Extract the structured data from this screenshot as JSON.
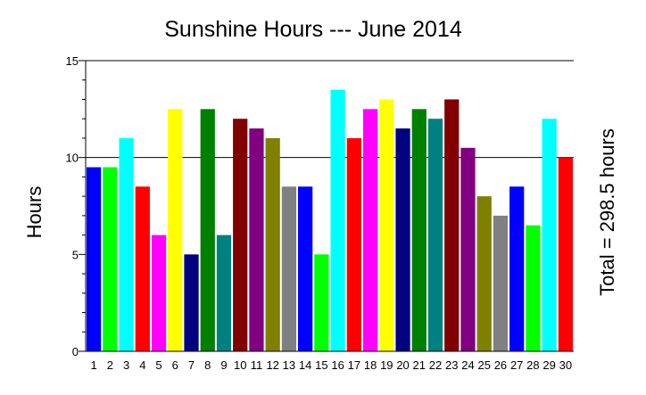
{
  "chart_data": {
    "type": "bar",
    "title": "Sunshine Hours --- June 2014",
    "ylabel": "Hours",
    "xlabel": "",
    "right_label": "Total = 298.5 hours",
    "ylim": [
      0,
      15
    ],
    "yticks": [
      "0",
      "5",
      "10",
      "15"
    ],
    "grid": "horizontal major lines at 10 and 15",
    "categories": [
      "1",
      "2",
      "3",
      "4",
      "5",
      "6",
      "7",
      "8",
      "9",
      "10",
      "11",
      "12",
      "13",
      "14",
      "15",
      "16",
      "17",
      "18",
      "19",
      "20",
      "21",
      "22",
      "23",
      "24",
      "25",
      "26",
      "27",
      "28",
      "29",
      "30"
    ],
    "values": [
      9.5,
      9.5,
      11,
      8.5,
      6,
      12.5,
      5,
      12.5,
      6,
      12,
      11.5,
      11,
      8.5,
      8.5,
      5,
      13.5,
      11,
      12.5,
      13,
      11.5,
      12.5,
      12,
      13,
      10.5,
      8,
      7,
      8.5,
      6.5,
      12,
      10
    ],
    "colors": [
      "#0000ff",
      "#00ff00",
      "#00ffff",
      "#ff0000",
      "#ff00ff",
      "#ffff00",
      "#000080",
      "#008000",
      "#008080",
      "#800000",
      "#800080",
      "#808000",
      "#808080",
      "#0000ff",
      "#00ff00",
      "#00ffff",
      "#ff0000",
      "#ff00ff",
      "#ffff00",
      "#000080",
      "#008000",
      "#008080",
      "#800000",
      "#800080",
      "#808000",
      "#808080",
      "#0000ff",
      "#00ff00",
      "#00ffff",
      "#ff0000"
    ]
  }
}
